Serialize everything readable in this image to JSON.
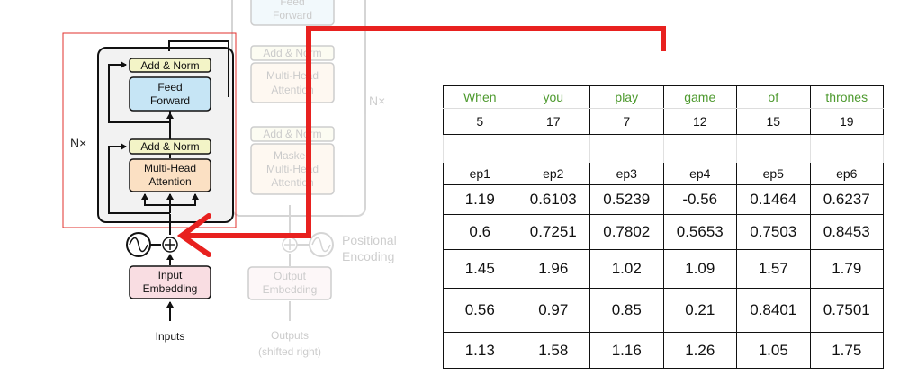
{
  "diagram": {
    "encoder": {
      "repeat_label": "N×",
      "add_norm_top": "Add & Norm",
      "feed_forward": [
        "Feed",
        "Forward"
      ],
      "add_norm_bottom": "Add & Norm",
      "attention": [
        "Multi-Head",
        "Attention"
      ],
      "embedding": [
        "Input",
        "Embedding"
      ],
      "inputs_label": "Inputs"
    },
    "decoder_faded": {
      "feed_forward": [
        "Feed",
        "Forward"
      ],
      "add_norm_1": "Add & Norm",
      "attention_1": [
        "Multi-Head",
        "Attention"
      ],
      "add_norm_2": "Add & Norm",
      "attention_2": [
        "Masked",
        "Multi-Head",
        "Attention"
      ],
      "repeat_label": "N×",
      "positional": [
        "Positional",
        "Encoding"
      ],
      "embedding": [
        "Output",
        "Embedding"
      ],
      "outputs_label": [
        "Outputs",
        "(shifted right)"
      ]
    }
  },
  "table": {
    "words": [
      "When",
      "you",
      "play",
      "game",
      "of",
      "thrones"
    ],
    "ids": [
      "5",
      "17",
      "7",
      "12",
      "15",
      "19"
    ],
    "headers": [
      "ep1",
      "ep2",
      "ep3",
      "ep4",
      "ep5",
      "ep6"
    ],
    "rows": [
      [
        "1.19",
        "0.6103",
        "0.5239",
        "-0.56",
        "0.1464",
        "0.6237"
      ],
      [
        "0.6",
        "0.7251",
        "0.7802",
        "0.5653",
        "0.7503",
        "0.8453"
      ],
      [
        "1.45",
        "1.96",
        "1.02",
        "1.09",
        "1.57",
        "1.79"
      ],
      [
        "0.56",
        "0.97",
        "0.85",
        "0.21",
        "0.8401",
        "0.7501"
      ],
      [
        "1.13",
        "1.58",
        "1.16",
        "1.26",
        "1.05",
        "1.75"
      ]
    ]
  },
  "colors": {
    "highlight_red": "#e8211f",
    "word_green": "#4e9a2f",
    "add_norm_fill": "#f3f4c7",
    "feed_forward_fill": "#c6e5f5",
    "attention_fill": "#fbe0c3",
    "embedding_fill": "#f9dde2"
  }
}
